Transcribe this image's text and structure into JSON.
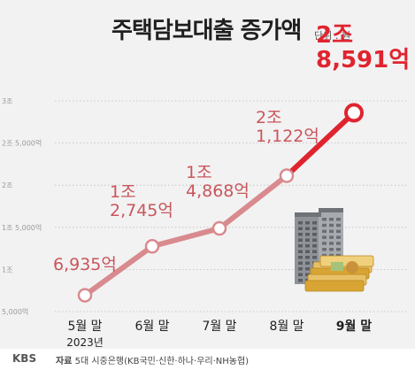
{
  "title": "주택담보대출 증가액",
  "unit": "단위 : 원",
  "footer": {
    "logo": "KBS",
    "source_label": "자료",
    "source": "5대 시중은행(KB국민·신한·하나·우리·NH농협)"
  },
  "chart_data": {
    "type": "line",
    "categories": [
      "5월 말",
      "6월 말",
      "7월 말",
      "8월 말",
      "9월 말"
    ],
    "year_label": "2023년",
    "values": [
      693500000000,
      1274500000000,
      1486800000000,
      2112200000000,
      2859100000000
    ],
    "value_labels": [
      [
        "6,935억"
      ],
      [
        "1조",
        "2,745억"
      ],
      [
        "1조",
        "4,868억"
      ],
      [
        "2조",
        "1,122억"
      ],
      [
        "2조",
        "8,591억"
      ]
    ],
    "y_ticks": [
      {
        "value": 500000000000,
        "label": "5,000억"
      },
      {
        "value": 1000000000000,
        "label": "1조"
      },
      {
        "value": 1500000000000,
        "label": "1조 5,000억"
      },
      {
        "value": 2000000000000,
        "label": "2조"
      },
      {
        "value": 2500000000000,
        "label": "2조 5,000억"
      },
      {
        "value": 3000000000000,
        "label": "3조"
      }
    ],
    "ylim": [
      500000000000,
      3000000000000
    ],
    "grid": true,
    "highlight_index": 4,
    "colors": {
      "line": "#d98a8e",
      "highlight": "#e0242f",
      "label": "#c9565d",
      "grid": "#bdbdbd"
    }
  }
}
